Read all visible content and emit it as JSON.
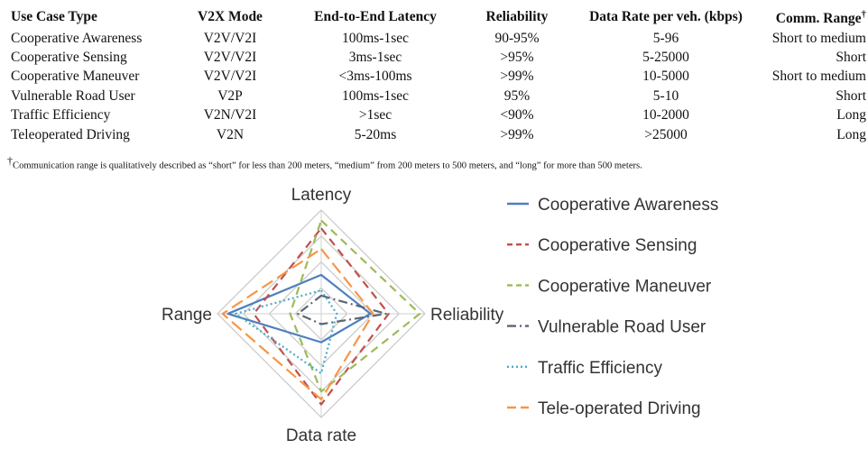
{
  "table": {
    "headers": [
      "Use Case Type",
      "V2X Mode",
      "End-to-End Latency",
      "Reliability",
      "Data Rate per veh. (kbps)",
      "Comm. Range"
    ],
    "header_dagger": "†",
    "rows": [
      [
        "Cooperative Awareness",
        "V2V/V2I",
        "100ms-1sec",
        "90-95%",
        "5-96",
        "Short to medium"
      ],
      [
        "Cooperative Sensing",
        "V2V/V2I",
        "3ms-1sec",
        ">95%",
        "5-25000",
        "Short"
      ],
      [
        "Cooperative Maneuver",
        "V2V/V2I",
        "<3ms-100ms",
        ">99%",
        "10-5000",
        "Short to medium"
      ],
      [
        "Vulnerable Road User",
        "V2P",
        "100ms-1sec",
        "95%",
        "5-10",
        "Short"
      ],
      [
        "Traffic Efficiency",
        "V2N/V2I",
        ">1sec",
        "<90%",
        "10-2000",
        "Long"
      ],
      [
        "Teleoperated Driving",
        "V2N",
        "5-20ms",
        ">99%",
        ">25000",
        "Long"
      ]
    ]
  },
  "footnote": {
    "mark": "†",
    "text": "Communication range is qualitatively described as “short” for less than 200 meters, “medium” from 200 meters to 500 meters, and “long” for more than 500 meters."
  },
  "chart_data": {
    "type": "radar",
    "axes": [
      "Latency",
      "Reliability",
      "Data rate",
      "Range"
    ],
    "rmax": 4,
    "grid_levels": 4,
    "grid": true,
    "legend_position": "right",
    "series": [
      {
        "name": "Cooperative Awareness",
        "color": "#4f7fbf",
        "dash": "solid",
        "values": [
          1.5,
          1.9,
          1.1,
          3.6
        ]
      },
      {
        "name": "Cooperative Sensing",
        "color": "#c0504d",
        "dash": "dashed",
        "values": [
          3.3,
          2.6,
          3.5,
          2.6
        ]
      },
      {
        "name": "Cooperative Maneuver",
        "color": "#9bbb59",
        "dash": "dashed",
        "values": [
          3.6,
          3.8,
          3.0,
          1.2
        ]
      },
      {
        "name": "Vulnerable Road User",
        "color": "#5a6575",
        "dash": "dashdot",
        "values": [
          0.7,
          2.5,
          0.4,
          0.9
        ]
      },
      {
        "name": "Traffic Efficiency",
        "color": "#4bacc6",
        "dash": "dotted",
        "values": [
          0.9,
          0.6,
          2.3,
          3.3
        ]
      },
      {
        "name": "Tele-operated Driving",
        "color": "#f79646",
        "dash": "longdash",
        "values": [
          2.5,
          2.0,
          3.3,
          3.8
        ]
      }
    ]
  }
}
